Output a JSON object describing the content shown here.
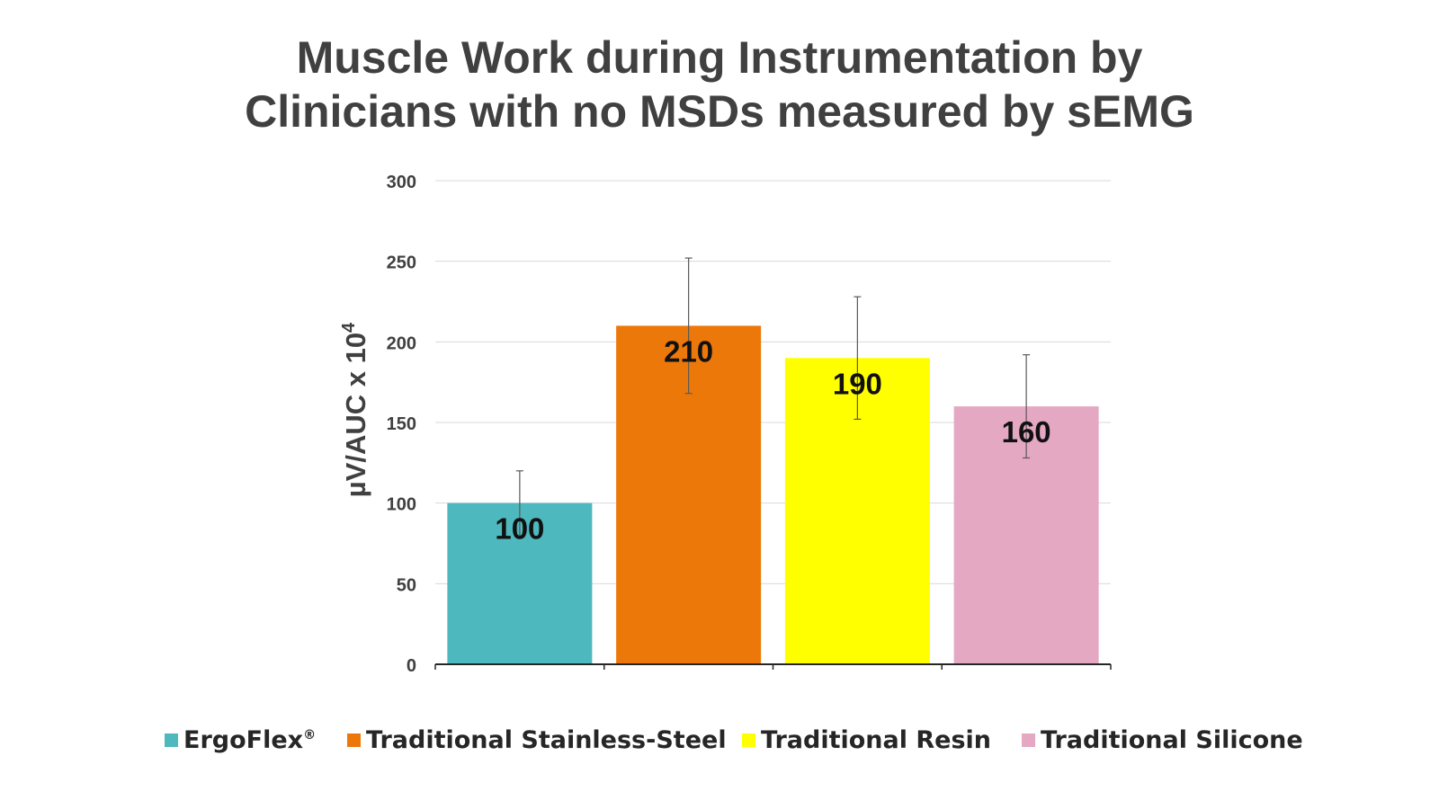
{
  "chart_data": {
    "type": "bar",
    "title": [
      "Muscle Work during Instrumentation by",
      "Clinicians with no MSDs measured by sEMG"
    ],
    "ylabel": "µV/AUC x 10",
    "ylabel_superscript": "4",
    "xlabel": "",
    "ylim": [
      0,
      300
    ],
    "yticks": [
      "0",
      "50",
      "100",
      "150",
      "200",
      "250",
      "300"
    ],
    "grid": true,
    "legend_position": "bottom",
    "series": [
      {
        "name": "ErgoFlex",
        "name_superscript": "®",
        "value": 100,
        "label": "100",
        "error_low": 80,
        "error_high": 120,
        "color": "#4DB8BE"
      },
      {
        "name": "Traditional Stainless-Steel",
        "name_superscript": "",
        "value": 210,
        "label": "210",
        "error_low": 168,
        "error_high": 252,
        "color": "#ED780A"
      },
      {
        "name": "Traditional Resin",
        "name_superscript": "",
        "value": 190,
        "label": "190",
        "error_low": 152,
        "error_high": 228,
        "color": "#FFFF00"
      },
      {
        "name": "Traditional Silicone",
        "name_superscript": "",
        "value": 160,
        "label": "160",
        "error_low": 128,
        "error_high": 192,
        "color": "#E4A8C2"
      }
    ]
  }
}
